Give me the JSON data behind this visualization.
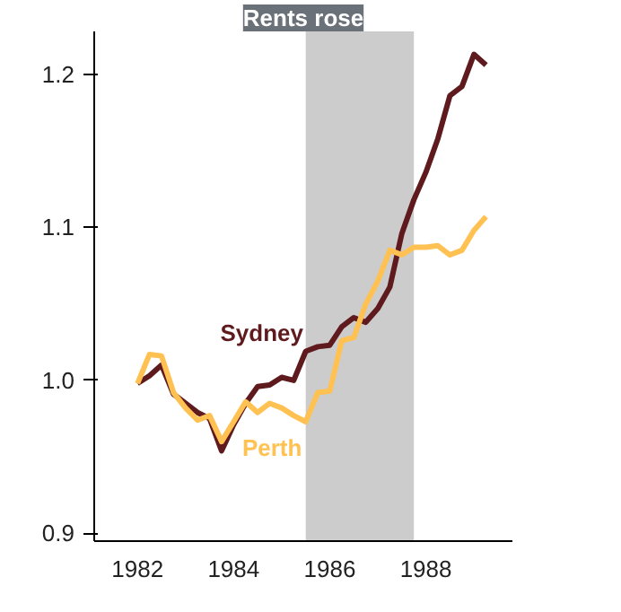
{
  "chart_data": {
    "type": "line",
    "title": "Rents rose",
    "x": [
      1982.0,
      1982.25,
      1982.5,
      1982.75,
      1983.0,
      1983.25,
      1983.5,
      1983.75,
      1984.0,
      1984.25,
      1984.5,
      1984.75,
      1985.0,
      1985.25,
      1985.5,
      1985.75,
      1986.0,
      1986.25,
      1986.5,
      1986.75,
      1987.0,
      1987.25,
      1987.5,
      1987.75,
      1988.0,
      1988.25,
      1988.5,
      1988.75,
      1989.0,
      1989.25
    ],
    "series": [
      {
        "name": "Sydney",
        "color": "#5e1a1d",
        "values": [
          0.998,
          1.003,
          1.01,
          0.991,
          0.985,
          0.979,
          0.975,
          0.954,
          0.971,
          0.985,
          0.996,
          0.997,
          1.002,
          1.0,
          1.019,
          1.022,
          1.023,
          1.035,
          1.041,
          1.038,
          1.047,
          1.061,
          1.096,
          1.118,
          1.136,
          1.158,
          1.186,
          1.192,
          1.213,
          1.206
        ]
      },
      {
        "name": "Perth",
        "color": "#ffc152",
        "values": [
          0.998,
          1.017,
          1.016,
          0.992,
          0.982,
          0.974,
          0.977,
          0.96,
          0.973,
          0.986,
          0.979,
          0.985,
          0.982,
          0.977,
          0.973,
          0.992,
          0.993,
          1.026,
          1.028,
          1.05,
          1.065,
          1.085,
          1.082,
          1.087,
          1.087,
          1.088,
          1.082,
          1.085,
          1.098,
          1.107
        ]
      }
    ],
    "xlim": [
      1981.1,
      1989.8
    ],
    "ylim": [
      0.895,
      1.228
    ],
    "xticks": [
      1982,
      1984,
      1986,
      1988
    ],
    "yticks": [
      {
        "value": 0.9,
        "label": "0.9"
      },
      {
        "value": 1.0,
        "label": "1.0"
      },
      {
        "value": 1.1,
        "label": "1.1"
      },
      {
        "value": 1.2,
        "label": "1.2"
      }
    ],
    "bands": [
      {
        "axis": "x",
        "from": 1985.5,
        "to": 1987.75,
        "color": "#cccccc"
      }
    ],
    "grid": false,
    "marker": "none",
    "line_style": "solid"
  }
}
